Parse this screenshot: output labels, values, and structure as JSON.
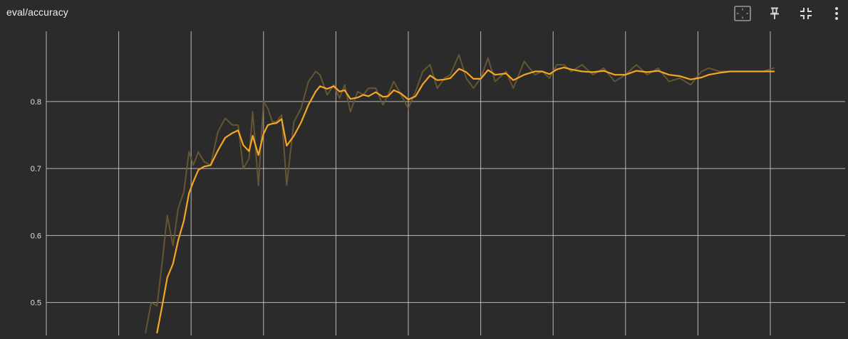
{
  "header": {
    "title": "eval/accuracy"
  },
  "toolbar": {
    "buttons": [
      {
        "icon": "fit-domain-icon"
      },
      {
        "icon": "pin-icon"
      },
      {
        "icon": "collapse-icon"
      },
      {
        "icon": "more-vert-icon"
      }
    ]
  },
  "colors": {
    "background": "#2b2b2b",
    "grid": "#d0d0d0",
    "smoothed": "#f5a623",
    "raw": "#6b5a33"
  },
  "chart_data": {
    "type": "line",
    "title": "eval/accuracy",
    "xlabel": "",
    "ylabel": "",
    "ylim": [
      0.455,
      0.905
    ],
    "yticks": [
      0.5,
      0.6,
      0.7,
      0.8
    ],
    "ytick_labels": [
      "0.5",
      "0.6",
      "0.7",
      "0.8"
    ],
    "xlim": [
      0,
      10.45
    ],
    "xticks": [
      0,
      1,
      2,
      3,
      4,
      5,
      6,
      7,
      8,
      9,
      10
    ],
    "grid": true,
    "legend": "none",
    "series": [
      {
        "role": "raw",
        "x": [
          1.37,
          1.45,
          1.53,
          1.6,
          1.67,
          1.75,
          1.82,
          1.9,
          1.97,
          2.03,
          2.1,
          2.18,
          2.27,
          2.37,
          2.47,
          2.57,
          2.65,
          2.72,
          2.8,
          2.85,
          2.93,
          3.0,
          3.06,
          3.12,
          3.18,
          3.25,
          3.32,
          3.42,
          3.52,
          3.62,
          3.72,
          3.78,
          3.88,
          3.97,
          4.05,
          4.12,
          4.2,
          4.3,
          4.38,
          4.45,
          4.55,
          4.65,
          4.72,
          4.8,
          4.9,
          5.0,
          5.1,
          5.2,
          5.3,
          5.4,
          5.5,
          5.58,
          5.7,
          5.8,
          5.9,
          6.0,
          6.1,
          6.2,
          6.35,
          6.45,
          6.6,
          6.75,
          6.85,
          6.95,
          7.05,
          7.15,
          7.25,
          7.4,
          7.55,
          7.7,
          7.85,
          8.0,
          8.15,
          8.3,
          8.45,
          8.6,
          8.75,
          8.9,
          9.05,
          9.15,
          9.3,
          9.45,
          9.6,
          9.75,
          9.9,
          10.05
        ],
        "y": [
          0.455,
          0.5,
          0.495,
          0.56,
          0.63,
          0.585,
          0.64,
          0.665,
          0.725,
          0.705,
          0.725,
          0.71,
          0.705,
          0.755,
          0.775,
          0.765,
          0.765,
          0.7,
          0.715,
          0.785,
          0.675,
          0.8,
          0.79,
          0.77,
          0.77,
          0.78,
          0.675,
          0.77,
          0.79,
          0.83,
          0.845,
          0.84,
          0.81,
          0.825,
          0.805,
          0.825,
          0.785,
          0.815,
          0.81,
          0.82,
          0.82,
          0.795,
          0.81,
          0.83,
          0.81,
          0.79,
          0.815,
          0.845,
          0.855,
          0.82,
          0.835,
          0.84,
          0.87,
          0.835,
          0.82,
          0.835,
          0.865,
          0.83,
          0.845,
          0.82,
          0.86,
          0.84,
          0.845,
          0.835,
          0.855,
          0.855,
          0.845,
          0.855,
          0.84,
          0.85,
          0.83,
          0.84,
          0.855,
          0.84,
          0.85,
          0.83,
          0.835,
          0.825,
          0.845,
          0.85,
          0.845,
          0.845,
          0.845,
          0.845,
          0.845,
          0.85
        ]
      },
      {
        "role": "smoothed",
        "x": [
          1.53,
          1.6,
          1.67,
          1.75,
          1.82,
          1.9,
          1.97,
          2.03,
          2.1,
          2.18,
          2.27,
          2.37,
          2.47,
          2.57,
          2.65,
          2.72,
          2.8,
          2.85,
          2.93,
          3.0,
          3.06,
          3.12,
          3.18,
          3.25,
          3.32,
          3.42,
          3.52,
          3.62,
          3.72,
          3.78,
          3.88,
          3.97,
          4.05,
          4.12,
          4.2,
          4.3,
          4.38,
          4.45,
          4.55,
          4.65,
          4.72,
          4.8,
          4.9,
          5.0,
          5.1,
          5.2,
          5.3,
          5.4,
          5.5,
          5.58,
          5.7,
          5.8,
          5.9,
          6.0,
          6.1,
          6.2,
          6.35,
          6.45,
          6.6,
          6.75,
          6.85,
          6.95,
          7.05,
          7.15,
          7.25,
          7.4,
          7.55,
          7.7,
          7.85,
          8.0,
          8.15,
          8.3,
          8.45,
          8.6,
          8.75,
          8.9,
          9.05,
          9.15,
          9.3,
          9.45,
          9.6,
          9.75,
          9.9,
          10.05
        ],
        "y": [
          0.455,
          0.495,
          0.537,
          0.558,
          0.592,
          0.622,
          0.663,
          0.68,
          0.698,
          0.703,
          0.705,
          0.727,
          0.746,
          0.753,
          0.757,
          0.735,
          0.726,
          0.749,
          0.72,
          0.752,
          0.765,
          0.767,
          0.768,
          0.774,
          0.734,
          0.749,
          0.769,
          0.795,
          0.815,
          0.823,
          0.819,
          0.823,
          0.815,
          0.817,
          0.804,
          0.806,
          0.81,
          0.808,
          0.814,
          0.807,
          0.808,
          0.817,
          0.812,
          0.803,
          0.808,
          0.826,
          0.839,
          0.832,
          0.833,
          0.835,
          0.849,
          0.844,
          0.834,
          0.834,
          0.847,
          0.84,
          0.842,
          0.832,
          0.84,
          0.845,
          0.845,
          0.841,
          0.848,
          0.851,
          0.848,
          0.845,
          0.844,
          0.846,
          0.84,
          0.84,
          0.846,
          0.844,
          0.846,
          0.84,
          0.838,
          0.833,
          0.836,
          0.84,
          0.843,
          0.845,
          0.845,
          0.845,
          0.845,
          0.845
        ]
      }
    ]
  }
}
